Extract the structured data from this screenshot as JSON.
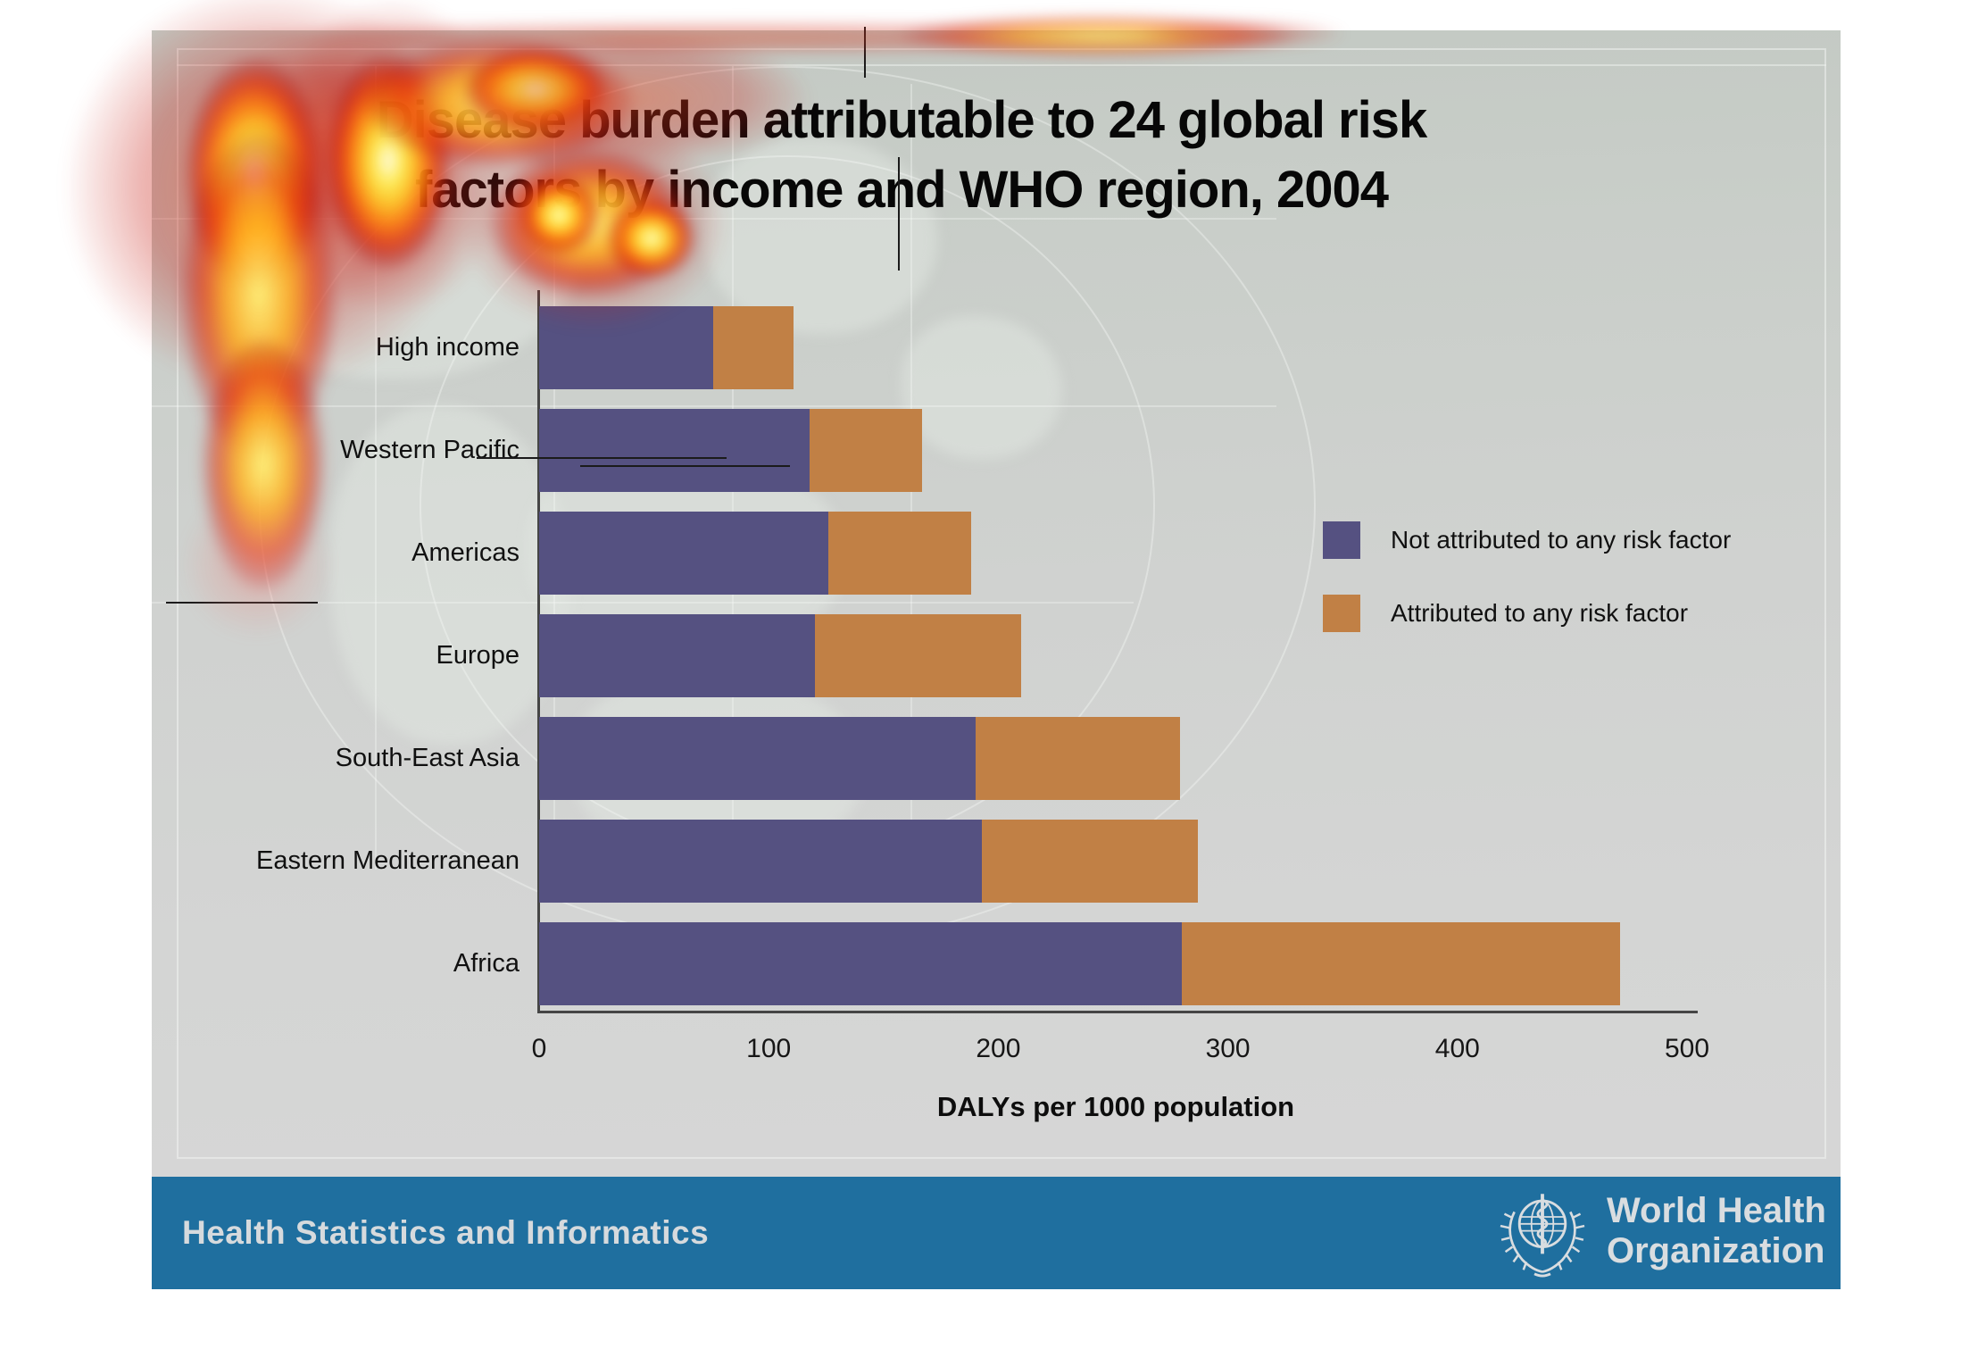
{
  "slide": {
    "title_line1": "Disease burden attributable to 24 global risk",
    "title_line2": "factors by income and WHO region, 2004",
    "footer": {
      "department": "Health Statistics and Informatics",
      "who_line1": "World Health",
      "who_line2": "Organization"
    }
  },
  "chart_data": {
    "type": "bar",
    "orientation": "horizontal",
    "stacked": true,
    "title": "Disease burden attributable to 24 global risk factors by income and WHO region, 2004",
    "categories": [
      "High income",
      "Western Pacific",
      "Americas",
      "Europe",
      "South-East Asia",
      "Eastern Mediterranean",
      "Africa"
    ],
    "series": [
      {
        "name": "Not attributed to any risk factor",
        "color": "#555181",
        "values": [
          76,
          118,
          126,
          120,
          190,
          193,
          280
        ]
      },
      {
        "name": "Attributed to any risk factor",
        "color": "#c18045",
        "values": [
          35,
          49,
          62,
          90,
          89,
          94,
          191
        ]
      }
    ],
    "totals": [
      111,
      167,
      188,
      210,
      279,
      287,
      471
    ],
    "xlabel": "DALYs per 1000 population",
    "x_ticks": [
      "0",
      "100",
      "200",
      "300",
      "400",
      "500"
    ],
    "xlim": [
      0,
      500
    ],
    "grid": false,
    "legend_position": "right"
  },
  "colors": {
    "bar_not_attributed": "#555181",
    "bar_attributed": "#c18045",
    "footer_bar": "#1f6f9f",
    "slide_background": "#d0d2d0",
    "axis_line": "#454545",
    "heatmap_core": "#fffbe8",
    "heatmap_hot": "#ffe93c",
    "heatmap_warm": "#ff9a00",
    "heatmap_edge": "#cc2000"
  }
}
